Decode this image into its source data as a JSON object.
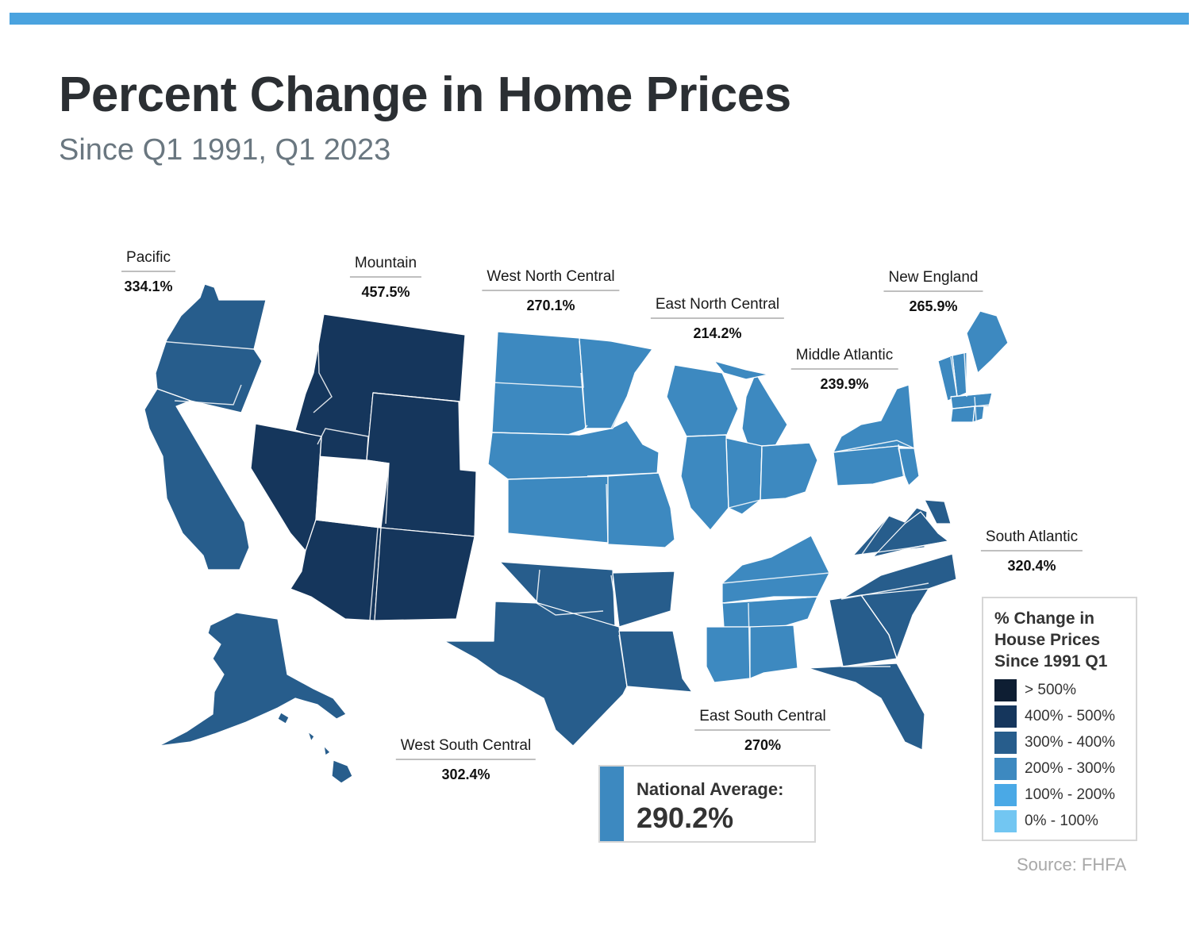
{
  "header": {
    "title": "Percent Change in Home Prices",
    "subtitle": "Since Q1 1991, Q1 2023"
  },
  "colors": {
    "accent_bar": "#4aa3df",
    "bin_gt500": "#0e1e33",
    "bin_400_500": "#15365c",
    "bin_300_400": "#275d8c",
    "bin_200_300": "#3d89c0",
    "bin_100_200": "#4aa9e6",
    "bin_0_100": "#72c6f2"
  },
  "regions": [
    {
      "id": "pacific",
      "name": "Pacific",
      "value": "334.1%",
      "bin": "bin_300_400"
    },
    {
      "id": "mountain",
      "name": "Mountain",
      "value": "457.5%",
      "bin": "bin_400_500"
    },
    {
      "id": "west-north-central",
      "name": "West North Central",
      "value": "270.1%",
      "bin": "bin_200_300"
    },
    {
      "id": "east-north-central",
      "name": "East North Central",
      "value": "214.2%",
      "bin": "bin_200_300"
    },
    {
      "id": "middle-atlantic",
      "name": "Middle Atlantic",
      "value": "239.9%",
      "bin": "bin_200_300"
    },
    {
      "id": "new-england",
      "name": "New England",
      "value": "265.9%",
      "bin": "bin_200_300"
    },
    {
      "id": "south-atlantic",
      "name": "South Atlantic",
      "value": "320.4%",
      "bin": "bin_300_400"
    },
    {
      "id": "east-south-central",
      "name": "East South Central",
      "value": "270%",
      "bin": "bin_200_300"
    },
    {
      "id": "west-south-central",
      "name": "West South Central",
      "value": "302.4%",
      "bin": "bin_300_400"
    }
  ],
  "legend": {
    "title": "% Change in House Prices Since 1991 Q1",
    "items": [
      {
        "label": "> 500%",
        "bin": "bin_gt500"
      },
      {
        "label": "400% - 500%",
        "bin": "bin_400_500"
      },
      {
        "label": "300% - 400%",
        "bin": "bin_300_400"
      },
      {
        "label": "200% - 300%",
        "bin": "bin_200_300"
      },
      {
        "label": "100% - 200%",
        "bin": "bin_100_200"
      },
      {
        "label": "0% - 100%",
        "bin": "bin_0_100"
      }
    ]
  },
  "national_average": {
    "label": "National Average:",
    "value": "290.2%"
  },
  "source": "Source: FHFA"
}
